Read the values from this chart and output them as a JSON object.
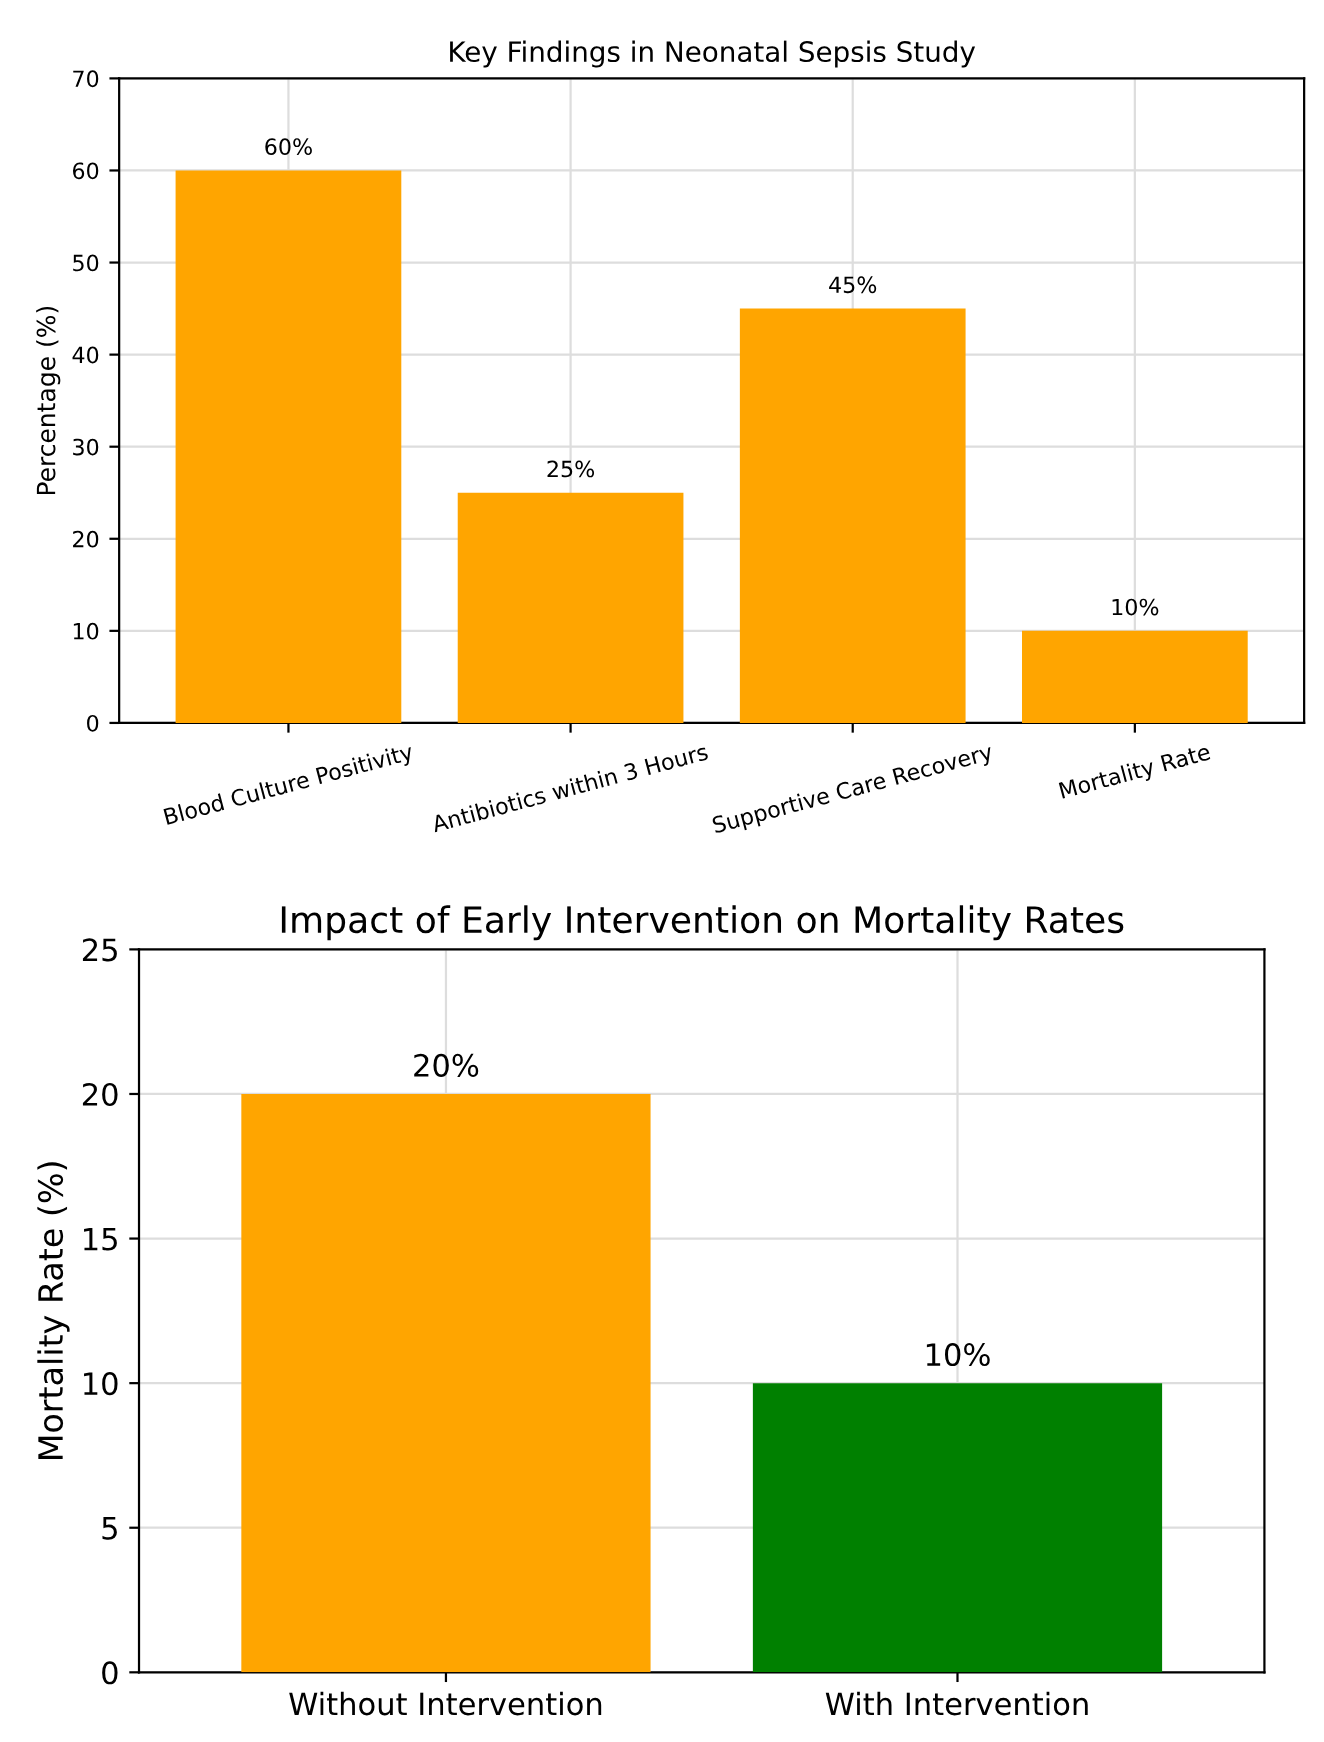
{
  "chart_data": [
    {
      "type": "bar",
      "title": "Key Findings in Neonatal Sepsis Study",
      "ylabel": "Percentage (%)",
      "categories": [
        "Blood Culture Positivity",
        "Antibiotics within 3 Hours",
        "Supportive Care Recovery",
        "Mortality Rate"
      ],
      "values": [
        60,
        25,
        45,
        10
      ],
      "value_labels": [
        "60%",
        "25%",
        "45%",
        "10%"
      ],
      "color": "#ffa500",
      "ylim": [
        0,
        70
      ],
      "yticks": [
        0,
        10,
        20,
        30,
        40,
        50,
        60,
        70
      ],
      "grid": true
    },
    {
      "type": "bar",
      "title": "Impact of Early Intervention on Mortality Rates",
      "ylabel": "Mortality Rate (%)",
      "categories": [
        "Without Intervention",
        "With Intervention"
      ],
      "values": [
        20,
        10
      ],
      "value_labels": [
        "20%",
        "10%"
      ],
      "colors": [
        "#ffa500",
        "#008000"
      ],
      "ylim": [
        0,
        25
      ],
      "yticks": [
        0,
        5,
        10,
        15,
        20,
        25
      ],
      "grid": true
    }
  ]
}
